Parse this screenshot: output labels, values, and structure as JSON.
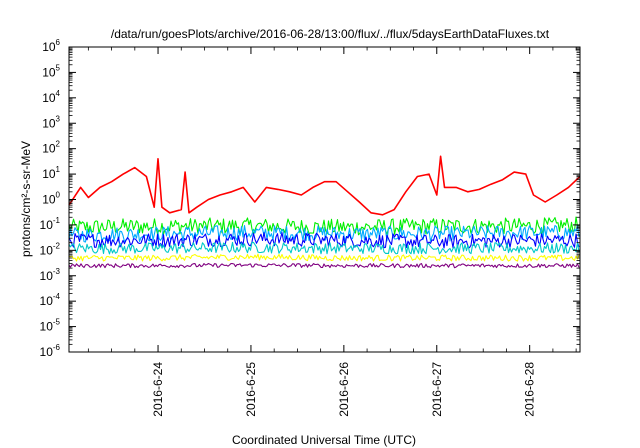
{
  "chart_data": {
    "type": "line",
    "title": "/data/run/goesPlots/archive/2016-06-28/13:00/flux/../flux/5daysEarthDataFluxes.txt",
    "xlabel": "Coordinated Universal Time (UTC)",
    "ylabel": "protons/cm²-s-sr-MeV",
    "yscale": "log",
    "ylim": [
      1e-06,
      1000000.0
    ],
    "xlim": [
      "2016-06-23T01:00",
      "2016-06-28T13:00"
    ],
    "grid": false,
    "legend": "none",
    "y_ticks": [
      {
        "base": "10",
        "exp": "-6"
      },
      {
        "base": "10",
        "exp": "-5"
      },
      {
        "base": "10",
        "exp": "-4"
      },
      {
        "base": "10",
        "exp": "-3"
      },
      {
        "base": "10",
        "exp": "-2"
      },
      {
        "base": "10",
        "exp": "-1"
      },
      {
        "base": "10",
        "exp": "0"
      },
      {
        "base": "10",
        "exp": "1"
      },
      {
        "base": "10",
        "exp": "2"
      },
      {
        "base": "10",
        "exp": "3"
      },
      {
        "base": "10",
        "exp": "4"
      },
      {
        "base": "10",
        "exp": "5"
      },
      {
        "base": "10",
        "exp": "6"
      }
    ],
    "x_ticks": [
      {
        "label": "2016-6-24",
        "date": "2016-06-24T00:00"
      },
      {
        "label": "2016-6-25",
        "date": "2016-06-25T00:00"
      },
      {
        "label": "2016-6-26",
        "date": "2016-06-26T00:00"
      },
      {
        "label": "2016-6-27",
        "date": "2016-06-27T00:00"
      },
      {
        "label": "2016-6-28",
        "date": "2016-06-28T00:00"
      }
    ],
    "series": [
      {
        "color": "#ff0000",
        "x": [
          "2016-06-23T01:00",
          "2016-06-23T04:00",
          "2016-06-23T06:00",
          "2016-06-23T09:00",
          "2016-06-23T12:00",
          "2016-06-23T15:00",
          "2016-06-23T18:00",
          "2016-06-23T21:00",
          "2016-06-23T23:00",
          "2016-06-24T00:00",
          "2016-06-24T01:00",
          "2016-06-24T03:00",
          "2016-06-24T06:00",
          "2016-06-24T07:00",
          "2016-06-24T08:00",
          "2016-06-24T10:00",
          "2016-06-24T13:00",
          "2016-06-24T16:00",
          "2016-06-24T19:00",
          "2016-06-24T22:00",
          "2016-06-25T01:00",
          "2016-06-25T04:00",
          "2016-06-25T07:00",
          "2016-06-25T10:00",
          "2016-06-25T13:00",
          "2016-06-25T16:00",
          "2016-06-25T19:00",
          "2016-06-25T22:00",
          "2016-06-26T01:00",
          "2016-06-26T04:00",
          "2016-06-26T07:00",
          "2016-06-26T10:00",
          "2016-06-26T13:00",
          "2016-06-26T16:00",
          "2016-06-26T19:00",
          "2016-06-26T22:00",
          "2016-06-27T00:00",
          "2016-06-27T01:00",
          "2016-06-27T02:00",
          "2016-06-27T05:00",
          "2016-06-27T08:00",
          "2016-06-27T11:00",
          "2016-06-27T14:00",
          "2016-06-27T17:00",
          "2016-06-27T20:00",
          "2016-06-27T23:00",
          "2016-06-28T01:00",
          "2016-06-28T04:00",
          "2016-06-28T07:00",
          "2016-06-28T10:00",
          "2016-06-28T13:00"
        ],
        "values": [
          0.6,
          3,
          1.2,
          3,
          5,
          10,
          18,
          8,
          0.5,
          40,
          0.5,
          0.3,
          0.4,
          12,
          0.3,
          0.5,
          1,
          1.5,
          2,
          3,
          0.8,
          3,
          2.5,
          2,
          1.5,
          3,
          5,
          5,
          2,
          0.8,
          0.3,
          0.25,
          0.4,
          2,
          8,
          10,
          1.5,
          50,
          3,
          3,
          2,
          2.5,
          4,
          6,
          12,
          10,
          1.5,
          0.8,
          1.5,
          3,
          8
        ]
      },
      {
        "color": "#00ee00",
        "x": [
          "2016-06-23T01:00",
          "2016-06-24T00:00",
          "2016-06-25T00:00",
          "2016-06-26T00:00",
          "2016-06-27T00:00",
          "2016-06-28T00:00",
          "2016-06-28T13:00"
        ],
        "values": [
          0.08,
          0.09,
          0.09,
          0.08,
          0.09,
          0.09,
          0.1
        ]
      },
      {
        "color": "#00aaff",
        "x": [
          "2016-06-23T01:00",
          "2016-06-24T00:00",
          "2016-06-25T00:00",
          "2016-06-26T00:00",
          "2016-06-27T00:00",
          "2016-06-28T00:00",
          "2016-06-28T13:00"
        ],
        "values": [
          0.04,
          0.045,
          0.05,
          0.045,
          0.045,
          0.05,
          0.05
        ]
      },
      {
        "color": "#0000ff",
        "x": [
          "2016-06-23T01:00",
          "2016-06-24T00:00",
          "2016-06-25T00:00",
          "2016-06-26T00:00",
          "2016-06-27T00:00",
          "2016-06-28T00:00",
          "2016-06-28T13:00"
        ],
        "values": [
          0.025,
          0.025,
          0.028,
          0.025,
          0.022,
          0.025,
          0.025
        ]
      },
      {
        "color": "#00c8c8",
        "x": [
          "2016-06-23T01:00",
          "2016-06-24T00:00",
          "2016-06-25T00:00",
          "2016-06-26T00:00",
          "2016-06-27T00:00",
          "2016-06-28T00:00",
          "2016-06-28T13:00"
        ],
        "values": [
          0.012,
          0.012,
          0.013,
          0.012,
          0.012,
          0.012,
          0.012
        ]
      },
      {
        "color": "#ffff00",
        "x": [
          "2016-06-23T01:00",
          "2016-06-24T00:00",
          "2016-06-25T00:00",
          "2016-06-26T00:00",
          "2016-06-27T00:00",
          "2016-06-28T00:00",
          "2016-06-28T13:00"
        ],
        "values": [
          0.005,
          0.005,
          0.0055,
          0.005,
          0.005,
          0.005,
          0.005
        ]
      },
      {
        "color": "#800080",
        "x": [
          "2016-06-23T01:00",
          "2016-06-24T00:00",
          "2016-06-25T00:00",
          "2016-06-26T00:00",
          "2016-06-27T00:00",
          "2016-06-28T00:00",
          "2016-06-28T13:00"
        ],
        "values": [
          0.0025,
          0.0025,
          0.0026,
          0.0025,
          0.0025,
          0.0025,
          0.0025
        ]
      }
    ]
  }
}
